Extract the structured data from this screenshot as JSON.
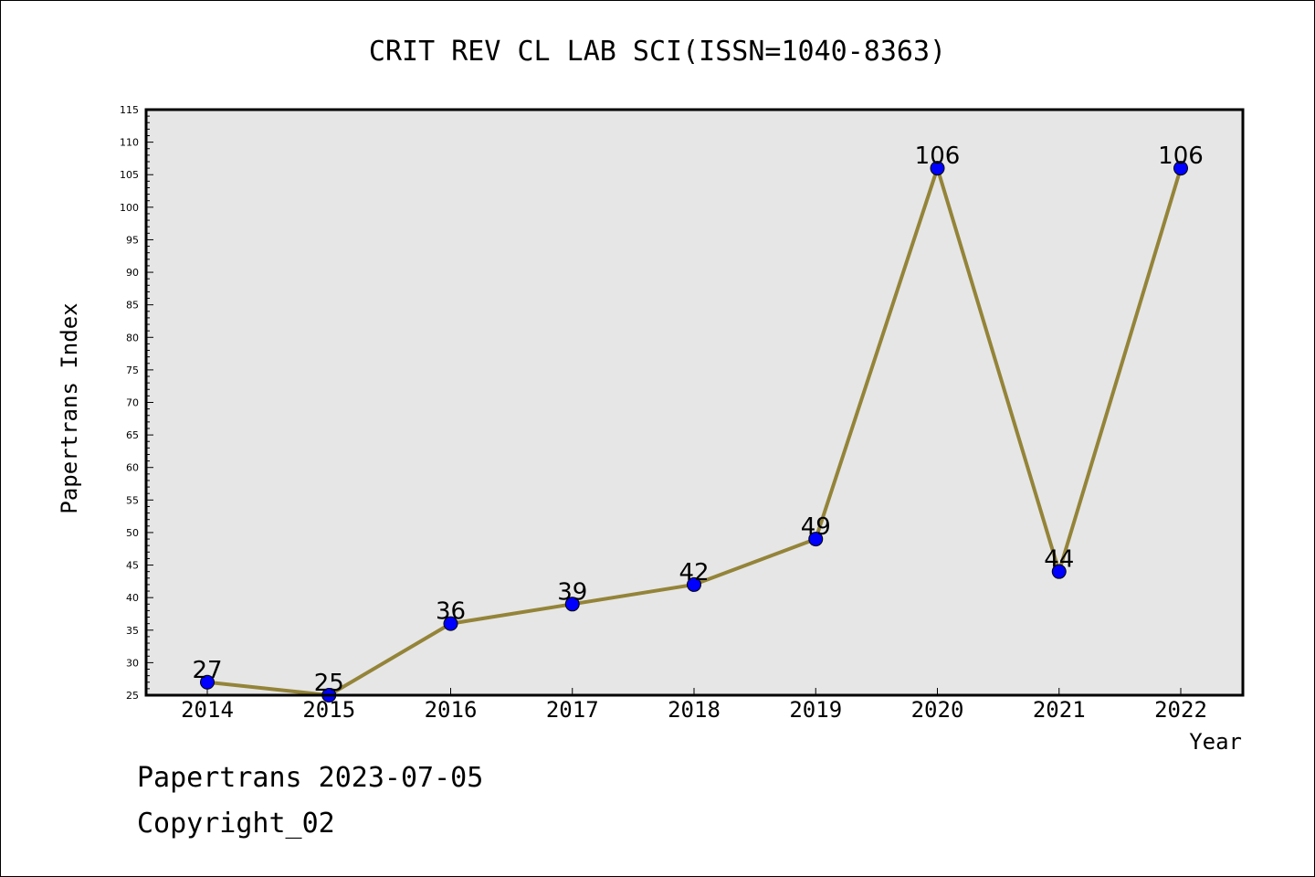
{
  "chart_data": {
    "type": "line",
    "title": "CRIT REV CL LAB SCI(ISSN=1040-8363)",
    "xlabel": "Year",
    "ylabel": "Papertrans Index",
    "categories": [
      "2014",
      "2015",
      "2016",
      "2017",
      "2018",
      "2019",
      "2020",
      "2021",
      "2022"
    ],
    "values": [
      27,
      25,
      36,
      39,
      42,
      49,
      106,
      44,
      106
    ],
    "data_labels": [
      "27",
      "25",
      "36",
      "39",
      "42",
      "49",
      "106",
      "44",
      "106"
    ],
    "ylim": [
      25,
      115
    ],
    "yticks": [
      25,
      30,
      35,
      40,
      45,
      50,
      55,
      60,
      65,
      70,
      75,
      80,
      85,
      90,
      95,
      100,
      105,
      110,
      115
    ],
    "ytick_labels": [
      "25",
      "30",
      "35",
      "40",
      "45",
      "50",
      "55",
      "60",
      "65",
      "70",
      "75",
      "80",
      "85",
      "90",
      "95",
      "100",
      "105",
      "110",
      "115"
    ],
    "grid": false,
    "colors": {
      "line": "#948439",
      "marker": "#0000ff",
      "plot_bg": "#e6e6e6"
    }
  },
  "footer": {
    "line1": "Papertrans 2023-07-05",
    "line2": "Copyright_02"
  }
}
